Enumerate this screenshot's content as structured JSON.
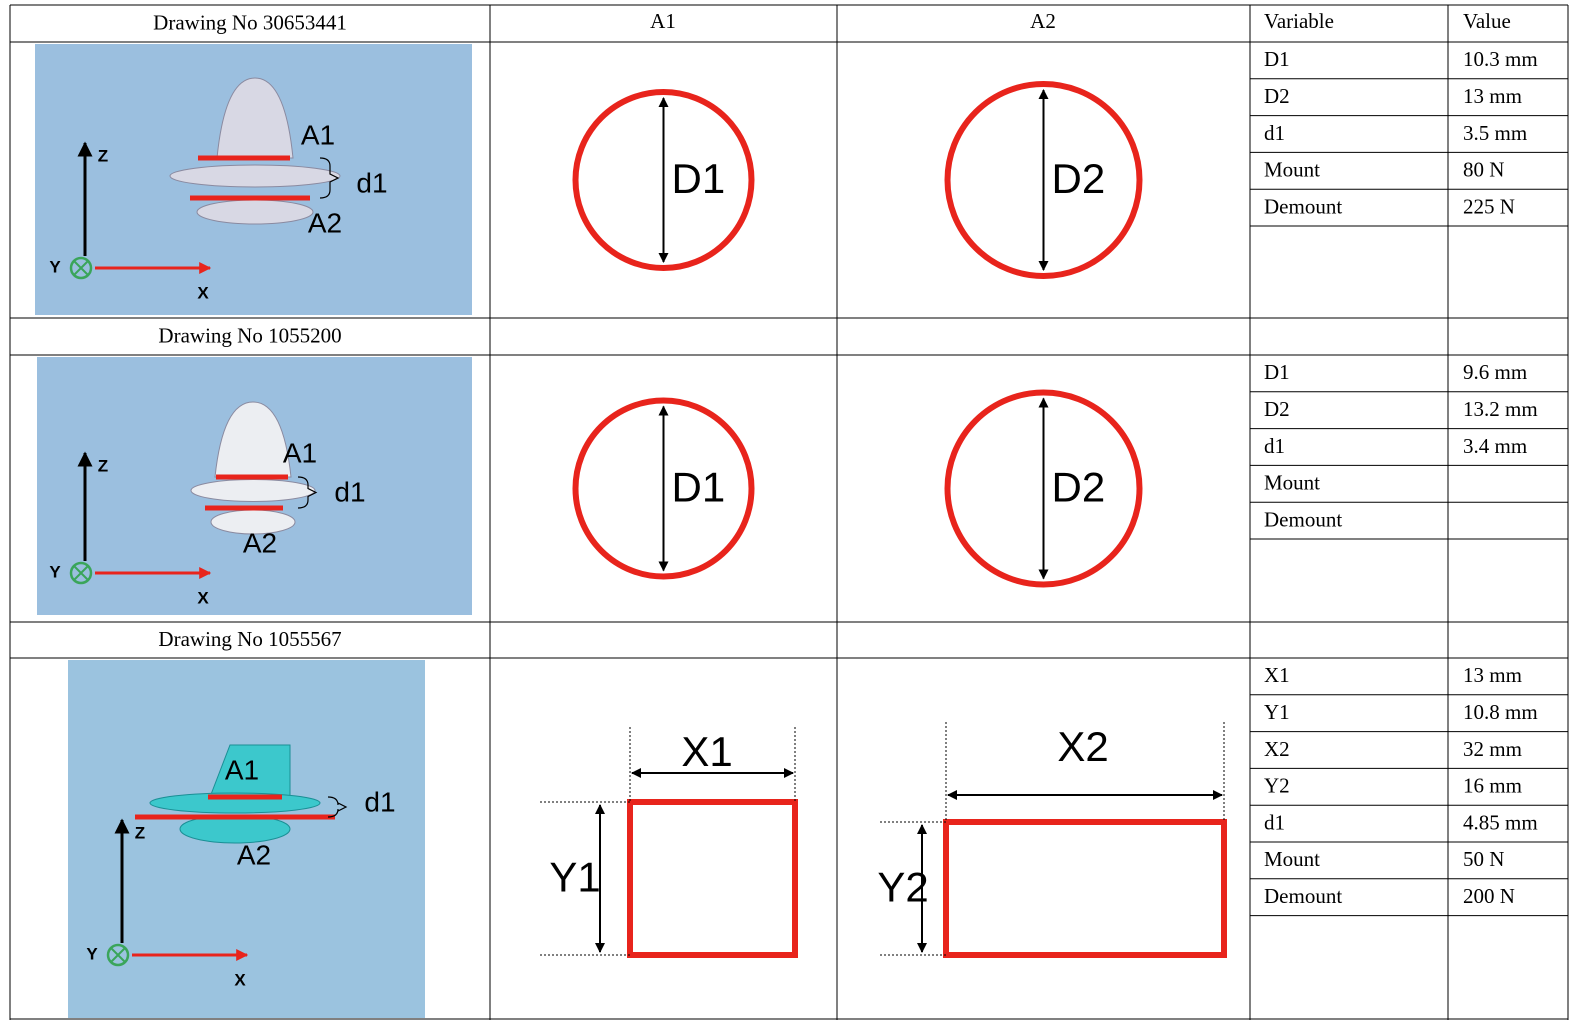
{
  "header": {
    "a1": "A1",
    "a2": "A2",
    "variable": "Variable",
    "value": "Value"
  },
  "sections": [
    {
      "drawing": "Drawing No 30653441",
      "figure": {
        "axes": [
          "Z",
          "Y",
          "X"
        ],
        "labels": [
          "A1",
          "d1",
          "A2"
        ]
      },
      "a1": [
        "D1"
      ],
      "a2": [
        "D2"
      ],
      "rows": [
        {
          "variable": "D1",
          "value": "10.3 mm"
        },
        {
          "variable": "D2",
          "value": "13 mm"
        },
        {
          "variable": "d1",
          "value": "3.5 mm"
        },
        {
          "variable": "Mount",
          "value": "80 N"
        },
        {
          "variable": "Demount",
          "value": "225 N"
        }
      ]
    },
    {
      "drawing": "Drawing No 1055200",
      "figure": {
        "axes": [
          "Z",
          "Y",
          "X"
        ],
        "labels": [
          "A1",
          "d1",
          "A2"
        ]
      },
      "a1": [
        "D1"
      ],
      "a2": [
        "D2"
      ],
      "rows": [
        {
          "variable": "D1",
          "value": "9.6 mm"
        },
        {
          "variable": "D2",
          "value": "13.2 mm"
        },
        {
          "variable": "d1",
          "value": "3.4 mm"
        },
        {
          "variable": "Mount"
        },
        {
          "variable": "Demount"
        }
      ]
    },
    {
      "drawing": "Drawing No 1055567",
      "figure": {
        "axes": [
          "Z",
          "Y",
          "X"
        ],
        "labels": [
          "A1",
          "d1",
          "A2"
        ]
      },
      "a1": [
        "X1",
        "Y1"
      ],
      "a2": [
        "X2",
        "Y2"
      ],
      "rows": [
        {
          "variable": "X1",
          "value": "13 mm"
        },
        {
          "variable": "Y1",
          "value": "10.8 mm"
        },
        {
          "variable": "X2",
          "value": "32 mm"
        },
        {
          "variable": "Y2",
          "value": "16 mm"
        },
        {
          "variable": "d1",
          "value": "4.85 mm"
        },
        {
          "variable": "Mount",
          "value": "50 N"
        },
        {
          "variable": "Demount",
          "value": "200 N"
        }
      ]
    }
  ]
}
